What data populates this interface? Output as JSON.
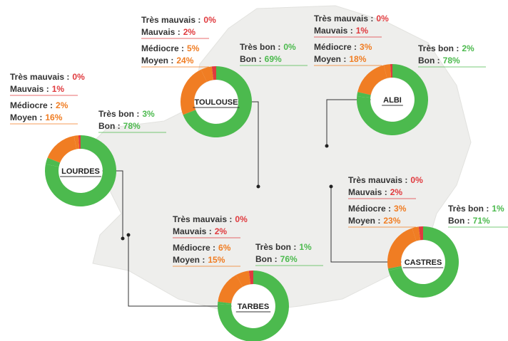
{
  "chart_data": [
    {
      "type": "pie",
      "donut": true,
      "title": "LOURDES",
      "categories": [
        "Très mauvais :",
        "Mauvais :",
        "Médiocre :",
        "Moyen :",
        "Très bon :",
        "Bon :"
      ],
      "values": [
        0,
        1,
        2,
        16,
        3,
        78
      ],
      "value_labels": [
        "0%",
        "1%",
        "2%",
        "16%",
        "3%",
        "78%"
      ],
      "colors": [
        "#e03a3e",
        "#e03a3e",
        "#f07d23",
        "#f07d23",
        "#4cba4e",
        "#4cba4e"
      ]
    },
    {
      "type": "pie",
      "donut": true,
      "title": "TOULOUSE",
      "categories": [
        "Très mauvais :",
        "Mauvais :",
        "Médiocre :",
        "Moyen :",
        "Très bon :",
        "Bon :"
      ],
      "values": [
        0,
        2,
        5,
        24,
        0,
        69
      ],
      "value_labels": [
        "0%",
        "2%",
        "5%",
        "24%",
        "0%",
        "69%"
      ],
      "colors": [
        "#e03a3e",
        "#e03a3e",
        "#f07d23",
        "#f07d23",
        "#4cba4e",
        "#4cba4e"
      ]
    },
    {
      "type": "pie",
      "donut": true,
      "title": "ALBI",
      "categories": [
        "Très mauvais :",
        "Mauvais :",
        "Médiocre :",
        "Moyen :",
        "Très bon :",
        "Bon :"
      ],
      "values": [
        0,
        1,
        3,
        18,
        2,
        78
      ],
      "value_labels": [
        "0%",
        "1%",
        "3%",
        "18%",
        "2%",
        "78%"
      ],
      "colors": [
        "#e03a3e",
        "#e03a3e",
        "#f07d23",
        "#f07d23",
        "#4cba4e",
        "#4cba4e"
      ]
    },
    {
      "type": "pie",
      "donut": true,
      "title": "CASTRES",
      "categories": [
        "Très mauvais :",
        "Mauvais :",
        "Médiocre :",
        "Moyen :",
        "Très bon :",
        "Bon :"
      ],
      "values": [
        0,
        2,
        3,
        23,
        1,
        71
      ],
      "value_labels": [
        "0%",
        "2%",
        "3%",
        "23%",
        "1%",
        "71%"
      ],
      "colors": [
        "#e03a3e",
        "#e03a3e",
        "#f07d23",
        "#f07d23",
        "#4cba4e",
        "#4cba4e"
      ]
    },
    {
      "type": "pie",
      "donut": true,
      "title": "TARBES",
      "categories": [
        "Très mauvais :",
        "Mauvais :",
        "Médiocre :",
        "Moyen :",
        "Très bon :",
        "Bon :"
      ],
      "values": [
        0,
        2,
        6,
        15,
        1,
        76
      ],
      "value_labels": [
        "0%",
        "2%",
        "6%",
        "15%",
        "1%",
        "76%"
      ],
      "colors": [
        "#e03a3e",
        "#e03a3e",
        "#f07d23",
        "#f07d23",
        "#4cba4e",
        "#4cba4e"
      ]
    }
  ]
}
